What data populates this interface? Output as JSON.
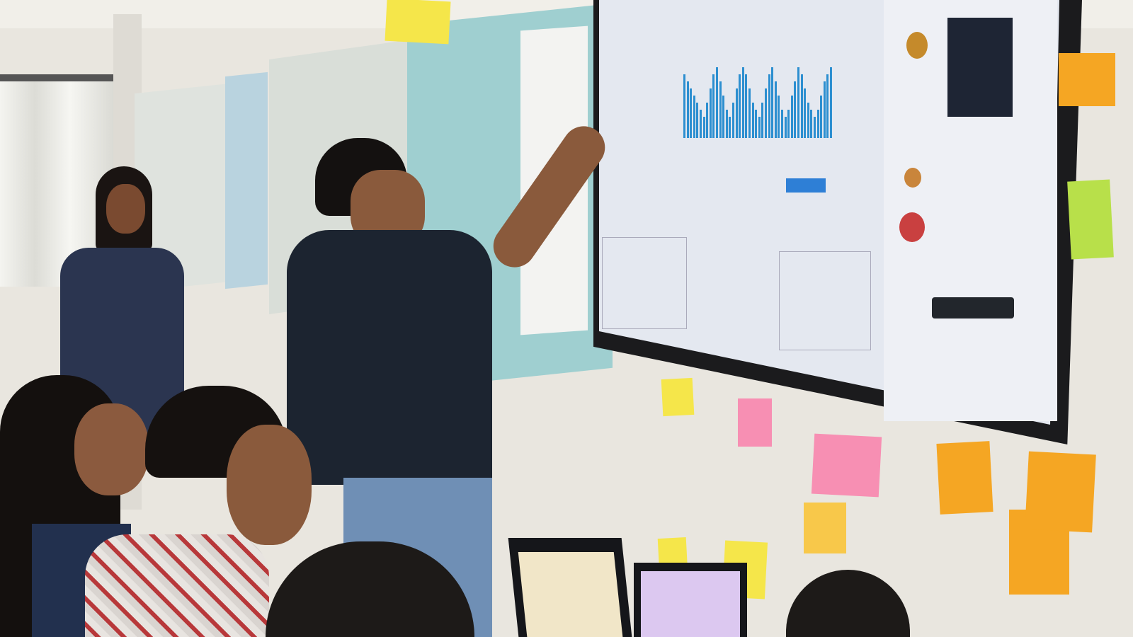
{
  "scene": {
    "description_colors": {
      "wall": "#e9e6df",
      "whiteboard_teal": "#9fcfd0",
      "tv_frame": "#1b1b1d",
      "screen": "#e4e8f0",
      "chart_bars": "#2d8fd0",
      "presenter_shirt": "#1c2430",
      "jeans": "#6f8fb5"
    },
    "sticky_notes": [
      {
        "color": "#f5e64a"
      },
      {
        "color": "#f78fb3"
      },
      {
        "color": "#f78fb3"
      },
      {
        "color": "#f5a623"
      },
      {
        "color": "#f8c84a"
      },
      {
        "color": "#f5e64a"
      },
      {
        "color": "#f5e64a"
      },
      {
        "color": "#f5a623"
      },
      {
        "color": "#f5a623"
      },
      {
        "color": "#b8e04a"
      },
      {
        "color": "#f5a623"
      },
      {
        "color": "#f5e64a"
      }
    ],
    "screen_chart": {
      "type": "bar",
      "values": [
        9,
        8,
        7,
        6,
        5,
        4,
        3,
        5,
        7,
        9,
        10,
        8,
        6,
        4,
        3,
        5,
        7,
        9,
        10,
        9,
        7,
        5,
        4,
        3,
        5,
        7,
        9,
        10,
        8,
        6,
        4,
        3,
        4,
        6,
        8,
        10,
        9,
        7,
        5,
        4,
        3,
        4,
        6,
        8,
        9,
        10
      ]
    }
  }
}
